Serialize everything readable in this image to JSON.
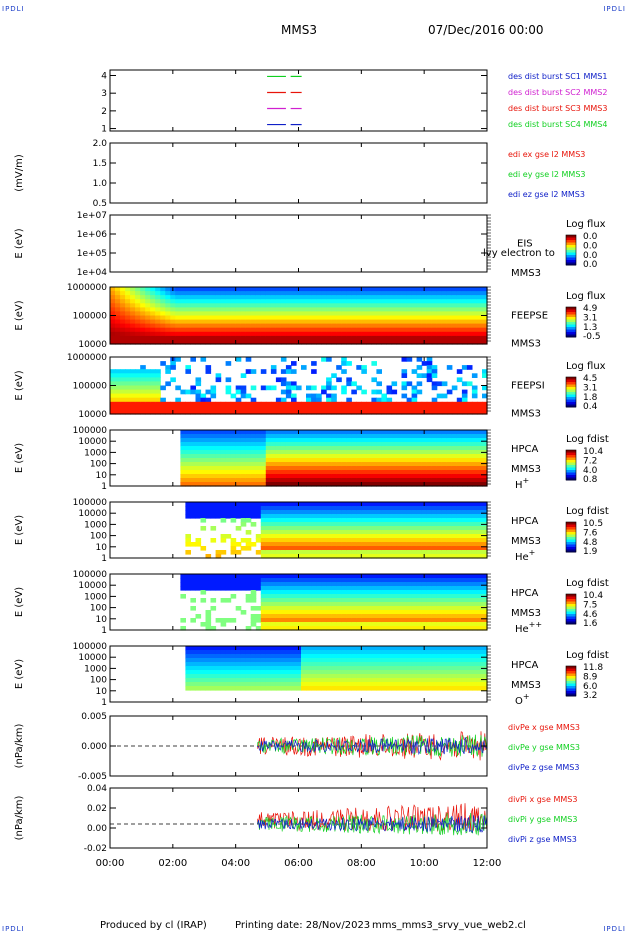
{
  "corners": {
    "tl": "IPDLI",
    "tr": "IPDLI",
    "bl": "IPDLI",
    "br": "IPDLI"
  },
  "header": {
    "spacecraft": "MMS3",
    "date": "07/Dec/2016 00:00"
  },
  "footer": {
    "produced": "Produced by cl (IRAP)",
    "printing": "Printing date: 28/Nov/2023",
    "filename": "mms_mms3_srvy_vue_web2.cl"
  },
  "colors": {
    "red": "#e8140a",
    "green": "#10d020",
    "blue": "#1020c8",
    "magenta": "#d020d0"
  },
  "chart_data": {
    "type": "heatmap",
    "x_ticks": [
      "00:00",
      "02:00",
      "04:00",
      "06:00",
      "08:00",
      "10:00",
      "12:00"
    ],
    "x_range_hours": [
      0,
      12
    ],
    "panels": [
      {
        "id": "dist",
        "type": "line",
        "ylabel": "",
        "y_ticks": [
          "4",
          "3",
          "2",
          "1"
        ],
        "legend": [
          {
            "text": "des dist burst SC1 MM",
            "suffix": "S1",
            "color": "#1020c8",
            "suffix_color": "#1020c8"
          },
          {
            "text": "des dist burst SC2 MM",
            "suffix": "S2",
            "color": "#d020d0",
            "suffix_color": "#d020d0"
          },
          {
            "text": "des dist burst SC3 MM",
            "suffix": "S3",
            "color": "#e8140a",
            "suffix_color": "#e8140a"
          },
          {
            "text": "des dist burst SC4 MM",
            "suffix": "S4",
            "color": "#10d020",
            "suffix_color": "#10d020"
          }
        ],
        "series": [
          {
            "sc": 4,
            "color": "#10d020",
            "segments": [
              [
                5.0,
                5.6
              ],
              [
                5.75,
                6.1
              ]
            ]
          },
          {
            "sc": 3,
            "color": "#e8140a",
            "segments": [
              [
                5.0,
                5.6
              ],
              [
                5.75,
                6.1
              ]
            ]
          },
          {
            "sc": 2,
            "color": "#d020d0",
            "segments": [
              [
                5.0,
                5.6
              ],
              [
                5.75,
                6.1
              ]
            ]
          },
          {
            "sc": 1,
            "color": "#1020c8",
            "segments": [
              [
                5.0,
                5.6
              ],
              [
                5.75,
                6.1
              ]
            ]
          }
        ]
      },
      {
        "id": "edi",
        "type": "line",
        "ylabel": "(mV/m)",
        "y_ticks": [
          "2.0",
          "1.5",
          "1.0",
          "0.5"
        ],
        "legend": [
          {
            "text": "edi ex gse l2 MMS3",
            "color": "#e8140a"
          },
          {
            "text": "edi ey gse l2 MMS3",
            "color": "#10d020"
          },
          {
            "text": "edi ez gse l2 MMS3",
            "color": "#1020c8"
          }
        ]
      },
      {
        "id": "eis",
        "type": "heatmap",
        "ylabel": "E (eV)",
        "y_ticks": [
          "1e+07",
          "1e+06",
          "1e+05",
          "1e+04"
        ],
        "labels": [
          "EIS",
          "MMS3"
        ],
        "overlay": "lvy electron to",
        "colorbar": {
          "title": "Log flux",
          "ticks": [
            "0.0",
            "0.0",
            "0.0",
            "0.0"
          ]
        }
      },
      {
        "id": "feepse",
        "type": "heatmap",
        "ylabel": "E (eV)",
        "y_ticks": [
          "1000000",
          "100000",
          "10000"
        ],
        "labels": [
          "FEEPSE",
          "MMS3"
        ],
        "colorbar": {
          "title": "Log flux",
          "ticks": [
            "4.9",
            "3.1",
            "1.3",
            "-0.5"
          ]
        }
      },
      {
        "id": "feepsi",
        "type": "heatmap",
        "ylabel": "E (eV)",
        "y_ticks": [
          "1000000",
          "100000",
          "10000"
        ],
        "labels": [
          "FEEPSI",
          "MMS3"
        ],
        "colorbar": {
          "title": "Log flux",
          "ticks": [
            "4.5",
            "3.1",
            "1.8",
            "0.4"
          ]
        }
      },
      {
        "id": "hpca_h",
        "type": "heatmap",
        "ylabel": "E (eV)",
        "y_ticks": [
          "100000",
          "10000",
          "1000",
          "100",
          "10",
          "1"
        ],
        "labels": [
          "HPCA",
          "MMS3"
        ],
        "species": "H",
        "species_sup": "+",
        "colorbar": {
          "title": "Log fdist",
          "ticks": [
            "10.4",
            "7.2",
            "4.0",
            "0.8"
          ]
        }
      },
      {
        "id": "hpca_he",
        "type": "heatmap",
        "ylabel": "E (eV)",
        "y_ticks": [
          "100000",
          "10000",
          "1000",
          "100",
          "10",
          "1"
        ],
        "labels": [
          "HPCA",
          "MMS3"
        ],
        "species": "He",
        "species_sup": "+",
        "colorbar": {
          "title": "Log fdist",
          "ticks": [
            "10.5",
            "7.6",
            "4.8",
            "1.9"
          ]
        }
      },
      {
        "id": "hpca_hepp",
        "type": "heatmap",
        "ylabel": "E (eV)",
        "y_ticks": [
          "100000",
          "10000",
          "1000",
          "100",
          "10",
          "1"
        ],
        "labels": [
          "HPCA",
          "MMS3"
        ],
        "species": "He",
        "species_sup": "++",
        "colorbar": {
          "title": "Log fdist",
          "ticks": [
            "10.4",
            "7.5",
            "4.6",
            "1.6"
          ]
        }
      },
      {
        "id": "hpca_o",
        "type": "heatmap",
        "ylabel": "E (eV)",
        "y_ticks": [
          "100000",
          "10000",
          "1000",
          "100",
          "10",
          "1"
        ],
        "labels": [
          "HPCA",
          "MMS3"
        ],
        "species": "O",
        "species_sup": "+",
        "colorbar": {
          "title": "Log fdist",
          "ticks": [
            "11.8",
            "8.9",
            "6.0",
            "3.2"
          ]
        }
      },
      {
        "id": "divpe",
        "type": "line",
        "ylabel": "(nPa/km)",
        "y_ticks": [
          "0.005",
          "0.000",
          "-0.005"
        ],
        "legend": [
          {
            "text": "divPe x gse MMS3",
            "color": "#e8140a"
          },
          {
            "text": "divPe y gse MMS3",
            "color": "#10d020"
          },
          {
            "text": "divPe z gse MMS3",
            "color": "#1020c8"
          }
        ]
      },
      {
        "id": "divpi",
        "type": "line",
        "ylabel": "(nPa/km)",
        "y_ticks": [
          "0.04",
          "0.02",
          "0.00",
          "-0.02"
        ],
        "legend": [
          {
            "text": "divPi x gse MMS3",
            "color": "#e8140a"
          },
          {
            "text": "divPi y gse MMS3",
            "color": "#10d020"
          },
          {
            "text": "divPi z gse MMS3",
            "color": "#1020c8"
          }
        ]
      }
    ]
  }
}
